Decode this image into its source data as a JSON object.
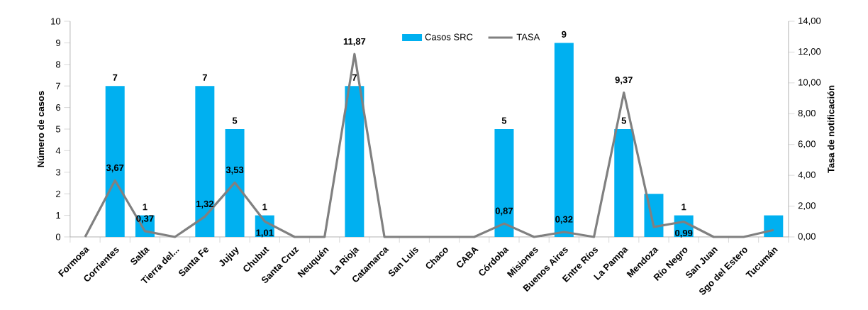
{
  "chart_data": {
    "type": "bar",
    "ylabel": "Número de casos",
    "y2label": "Tasa de notificación",
    "categories": [
      "Formosa",
      "Corrientes",
      "Salta",
      "Tierra del...",
      "Santa Fe",
      "Jujuy",
      "Chubut",
      "Santa Cruz",
      "Neuquén",
      "La Rioja",
      "Catamarca",
      "San Luis",
      "Chaco",
      "CABA",
      "Córdoba",
      "Misiones",
      "Buenos Aires",
      "Entre Ríos",
      "La Pampa",
      "Mendoza",
      "Río Negro",
      "San Juan",
      "Sgo del Estero",
      "Tucumán"
    ],
    "series": [
      {
        "name": "Casos SRC",
        "color": "#00b0f0",
        "values": [
          0,
          7,
          1,
          0,
          7,
          5,
          1,
          0,
          0,
          7,
          0,
          0,
          0,
          0,
          5,
          0,
          9,
          0,
          5,
          2,
          1,
          0,
          0,
          1
        ],
        "value_labels": [
          null,
          "7",
          "1",
          null,
          "7",
          "5",
          "1",
          null,
          null,
          "7",
          null,
          null,
          null,
          null,
          "5",
          null,
          "9",
          null,
          "5",
          null,
          "1",
          null,
          null,
          null
        ]
      },
      {
        "name": "TASA",
        "type": "line",
        "axis": "y2",
        "color": "#808080",
        "marker": "none",
        "line_style": "solid",
        "values": [
          0,
          3.67,
          0.37,
          0,
          1.32,
          3.53,
          1.01,
          0,
          0,
          11.87,
          0,
          0,
          0,
          0,
          0.87,
          0,
          0.32,
          0,
          9.37,
          0.65,
          0.99,
          0,
          0,
          0.45
        ],
        "value_labels": [
          null,
          "3,67",
          "0,37",
          null,
          "1,32",
          "3,53",
          "1,01",
          null,
          null,
          "11,87",
          null,
          null,
          null,
          null,
          "0,87",
          null,
          "0,32",
          null,
          "9,37",
          null,
          "0,99",
          null,
          null,
          null
        ]
      }
    ],
    "ylim": [
      0,
      10
    ],
    "yticks": [
      0,
      1,
      2,
      3,
      4,
      5,
      6,
      7,
      8,
      9,
      10
    ],
    "y2lim": [
      0,
      14
    ],
    "y2ticks": [
      {
        "value": 0,
        "label": "0,00"
      },
      {
        "value": 2,
        "label": "2,00"
      },
      {
        "value": 4,
        "label": "4,00"
      },
      {
        "value": 6,
        "label": "6,00"
      },
      {
        "value": 8,
        "label": "8,00"
      },
      {
        "value": 10,
        "label": "10,00"
      },
      {
        "value": 12,
        "label": "12,00"
      },
      {
        "value": 14,
        "label": "14,00"
      }
    ],
    "legend": "top"
  }
}
